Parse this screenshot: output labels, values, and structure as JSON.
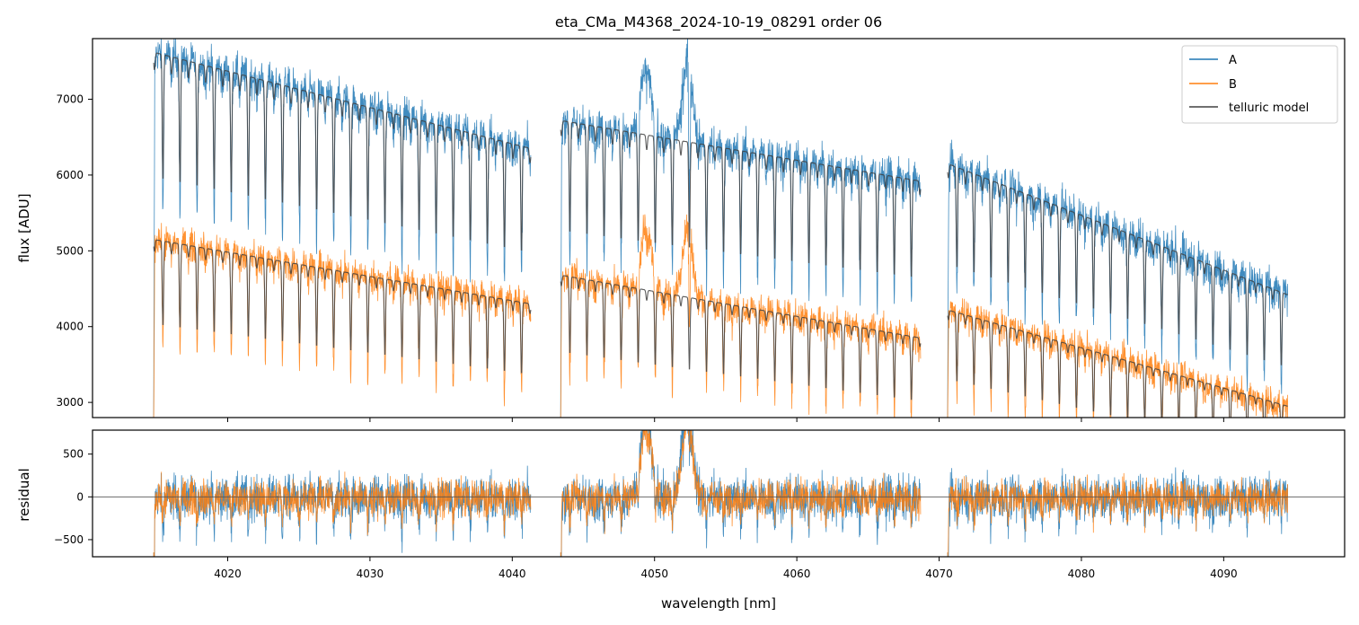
{
  "colors": {
    "A": "#1f77b4",
    "B": "#ff7f0e",
    "model": "#404040",
    "zero": "#555555"
  },
  "chart_data": [
    {
      "panel": "main",
      "type": "line",
      "title": "eta_CMa_M4368_2024-10-19_08291  order 06",
      "xlabel": "",
      "ylabel": "flux [ADU]",
      "xlim": [
        4010.5,
        4098.5
      ],
      "ylim": [
        2800,
        7800
      ],
      "x_ticks": [
        4020,
        4030,
        4040,
        4050,
        4060,
        4070,
        4080,
        4090
      ],
      "y_ticks": [
        3000,
        4000,
        5000,
        6000,
        7000
      ],
      "y_tick_labels": [
        "3000",
        "4000",
        "5000",
        "6000",
        "7000"
      ],
      "legend": {
        "position": "top-right",
        "entries": [
          "A",
          "B",
          "telluric model"
        ]
      },
      "segments": [
        {
          "x": [
            4014.8,
            4041.3
          ],
          "A_model": [
            7620,
            6350
          ],
          "B_model": [
            5150,
            4300
          ]
        },
        {
          "x": [
            4043.4,
            4068.7
          ],
          "A_model": [
            6720,
            5920
          ],
          "B_model": [
            4680,
            3850
          ]
        },
        {
          "x": [
            4070.6,
            4094.5
          ],
          "A_model": [
            6150,
            4420
          ],
          "B_model": [
            4220,
            2950
          ]
        }
      ],
      "absorption_spacing_nm": 1.2,
      "emission_features_A": [
        {
          "x": 4049.4,
          "peak": 7600
        },
        {
          "x": 4052.3,
          "peak": 7750
        }
      ],
      "emission_features_B": [
        {
          "x": 4049.4,
          "peak": 5500
        },
        {
          "x": 4052.3,
          "peak": 5500
        }
      ]
    },
    {
      "panel": "residual",
      "type": "line",
      "xlabel": "wavelength [nm]",
      "ylabel": "residual",
      "xlim": [
        4010.5,
        4098.5
      ],
      "ylim": [
        -700,
        780
      ],
      "x_ticks": [
        4020,
        4030,
        4040,
        4050,
        4060,
        4070,
        4080,
        4090
      ],
      "x_tick_labels": [
        "4020",
        "4030",
        "4040",
        "4050",
        "4060",
        "4070",
        "4080",
        "4090"
      ],
      "y_ticks": [
        -500,
        0,
        500
      ],
      "y_tick_labels": [
        "−500",
        "0",
        "500"
      ],
      "zero_line": 0,
      "segments": [
        [
          4014.8,
          4041.3
        ],
        [
          4043.4,
          4068.7
        ],
        [
          4070.6,
          4094.5
        ]
      ],
      "features": [
        {
          "x": 4049.4,
          "peak": 800
        },
        {
          "x": 4052.3,
          "peak": 800
        }
      ]
    }
  ]
}
